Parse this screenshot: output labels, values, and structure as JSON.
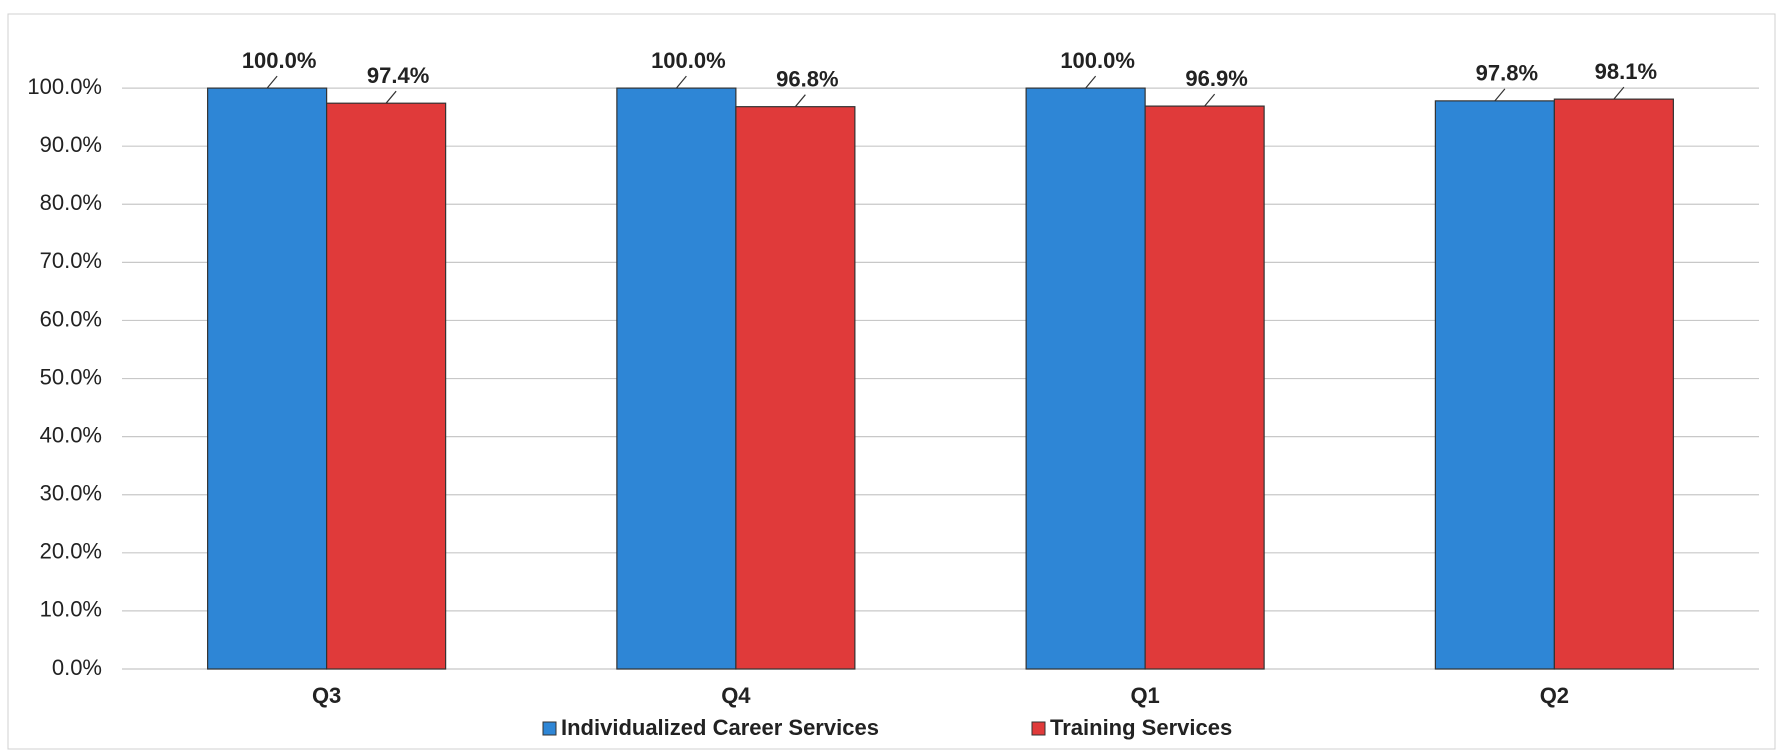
{
  "chart_data": {
    "type": "bar",
    "categories": [
      "Q3",
      "Q4",
      "Q1",
      "Q2"
    ],
    "series": [
      {
        "name": "Individualized Career Services",
        "color": "#2e86d6",
        "values": [
          100.0,
          100.0,
          100.0,
          97.8
        ],
        "value_labels": [
          "100.0%",
          "100.0%",
          "100.0%",
          "97.8%"
        ]
      },
      {
        "name": "Training Services",
        "color": "#e03a3a",
        "values": [
          97.4,
          96.8,
          96.9,
          98.1
        ],
        "value_labels": [
          "97.4%",
          "96.8%",
          "96.9%",
          "98.1%"
        ]
      }
    ],
    "ylim": [
      0,
      110
    ],
    "yticks": [
      {
        "value": 0,
        "label": "0.0%"
      },
      {
        "value": 10,
        "label": "10.0%"
      },
      {
        "value": 20,
        "label": "20.0%"
      },
      {
        "value": 30,
        "label": "30.0%"
      },
      {
        "value": 40,
        "label": "40.0%"
      },
      {
        "value": 50,
        "label": "50.0%"
      },
      {
        "value": 60,
        "label": "60.0%"
      },
      {
        "value": 70,
        "label": "70.0%"
      },
      {
        "value": 80,
        "label": "80.0%"
      },
      {
        "value": 90,
        "label": "90.0%"
      },
      {
        "value": 100,
        "label": "100.0%"
      }
    ],
    "grid": true,
    "legend": "bottom"
  }
}
